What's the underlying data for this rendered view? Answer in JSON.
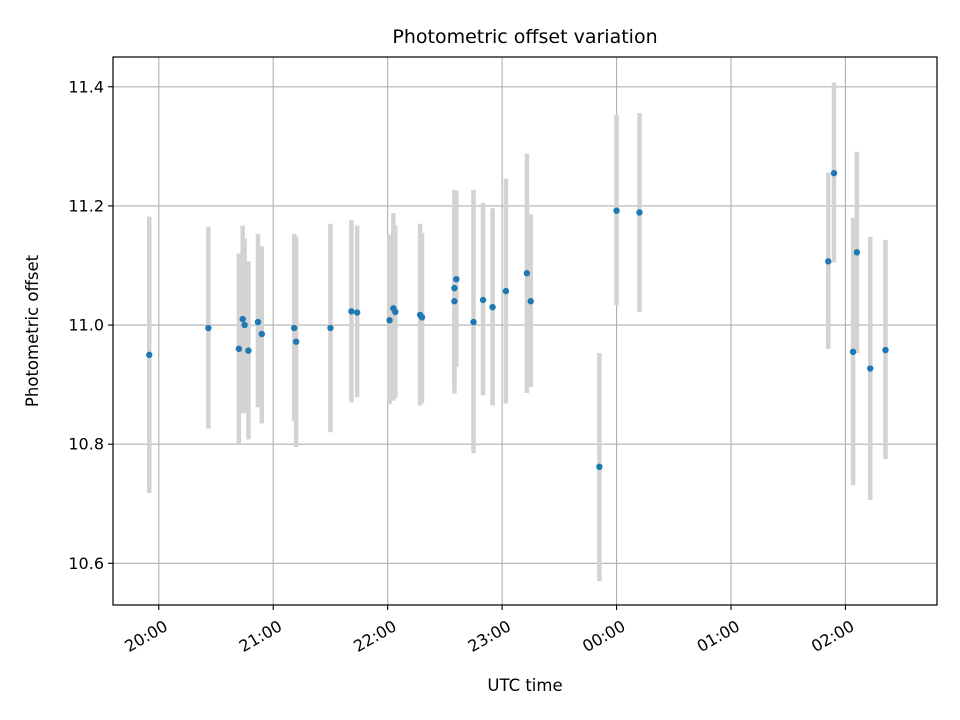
{
  "chart_data": {
    "type": "scatter",
    "title": "Photometric offset variation",
    "xlabel": "UTC time",
    "ylabel": "Photometric offset",
    "grid": true,
    "xlim": [
      "19:36",
      "02:48"
    ],
    "ylim": [
      10.53,
      11.45
    ],
    "x_ticks": [
      "20:00",
      "21:00",
      "22:00",
      "23:00",
      "00:00",
      "01:00",
      "02:00"
    ],
    "y_ticks": [
      10.6,
      10.8,
      11.0,
      11.2,
      11.4
    ],
    "y_tick_labels": [
      "10.6",
      "10.8",
      "11.0",
      "11.2",
      "11.4"
    ],
    "colors": {
      "point": "#1f77b4",
      "errorbar": "#d3d3d3",
      "grid": "#b0b0b0"
    },
    "series": [
      {
        "x": [
          "19:55",
          "20:26",
          "20:42",
          "20:44",
          "20:45",
          "20:47",
          "20:52",
          "20:54",
          "21:11",
          "21:12",
          "21:30",
          "21:41",
          "21:44",
          "22:01",
          "22:03",
          "22:04",
          "22:17",
          "22:18",
          "22:35",
          "22:36",
          "22:35",
          "22:45",
          "22:50",
          "22:55",
          "23:02",
          "23:13",
          "23:15",
          "23:51",
          "00:00",
          "00:12",
          "01:51",
          "01:54",
          "02:04",
          "02:06",
          "02:13",
          "02:21"
        ],
        "y": [
          10.95,
          10.995,
          10.96,
          11.01,
          11.0,
          10.957,
          11.005,
          10.985,
          10.995,
          10.972,
          10.995,
          11.023,
          11.021,
          11.008,
          11.028,
          11.022,
          11.017,
          11.013,
          11.062,
          11.077,
          11.04,
          11.005,
          11.042,
          11.03,
          11.057,
          11.087,
          11.04,
          10.762,
          11.192,
          11.189,
          11.107,
          11.255,
          10.955,
          11.122,
          10.927,
          10.958
        ],
        "err_low": [
          10.718,
          10.826,
          10.8,
          10.852,
          10.853,
          10.808,
          10.862,
          10.835,
          10.839,
          10.795,
          10.82,
          10.87,
          10.879,
          10.867,
          10.873,
          10.877,
          10.865,
          10.869,
          10.897,
          10.93,
          10.885,
          10.785,
          10.882,
          10.865,
          10.868,
          10.886,
          10.896,
          10.57,
          11.033,
          11.022,
          10.96,
          11.105,
          10.731,
          10.953,
          10.706,
          10.775
        ],
        "err_high": [
          11.182,
          11.165,
          11.12,
          11.167,
          11.145,
          11.107,
          11.153,
          11.132,
          11.153,
          11.148,
          11.17,
          11.176,
          11.167,
          11.152,
          11.188,
          11.167,
          11.17,
          11.155,
          11.227,
          11.225,
          11.195,
          11.227,
          11.205,
          11.196,
          11.246,
          11.288,
          11.186,
          10.953,
          11.353,
          11.356,
          11.256,
          11.407,
          11.18,
          11.291,
          11.148,
          11.143
        ]
      }
    ]
  }
}
